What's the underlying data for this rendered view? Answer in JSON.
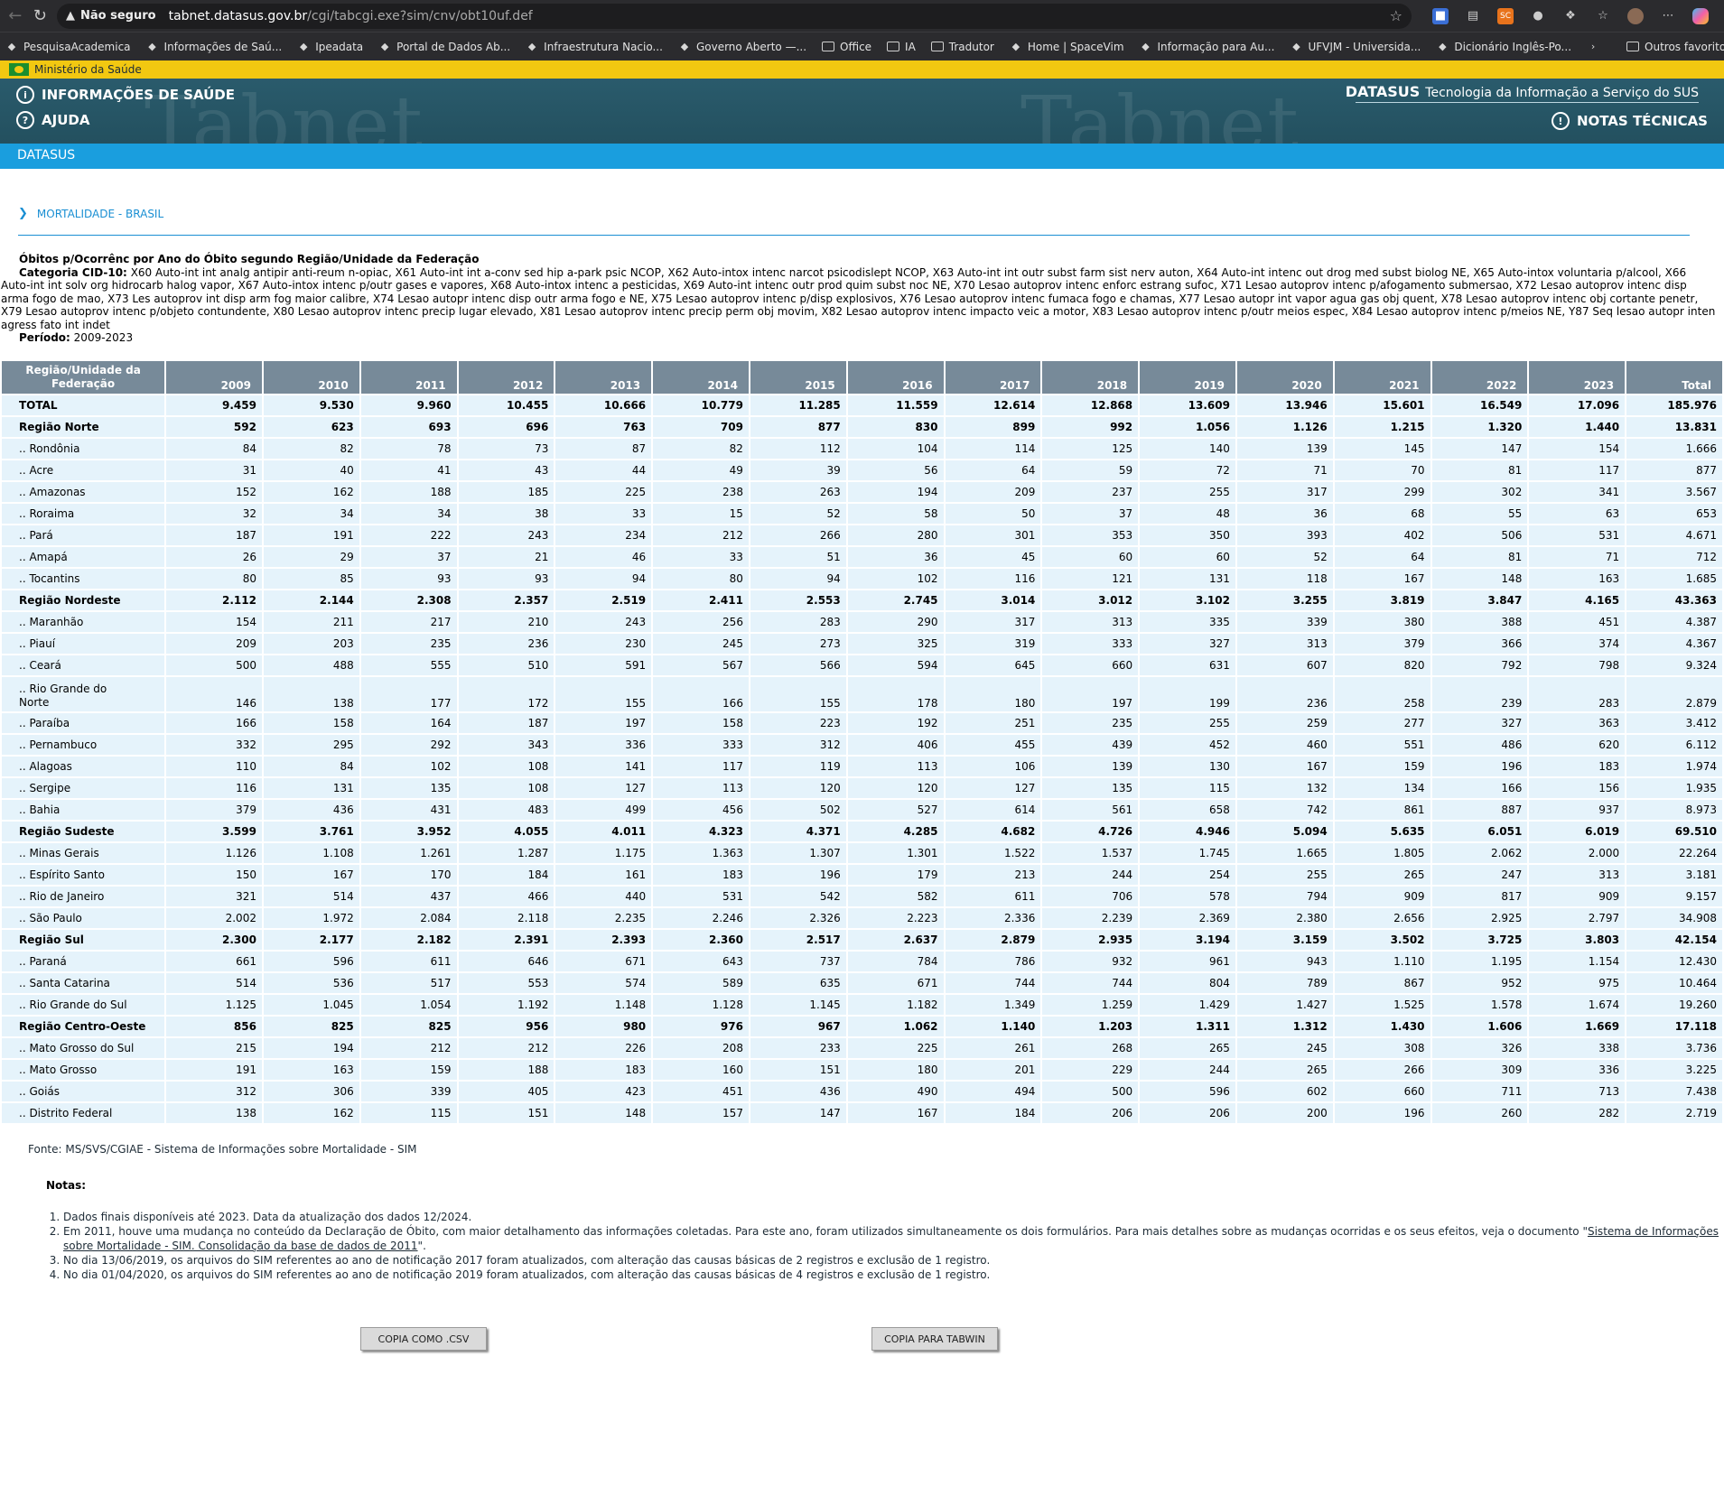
{
  "browser": {
    "security_label": "Não seguro",
    "url_host": "tabnet.datasus.gov.br",
    "url_path": "/cgi/tabcgi.exe?sim/cnv/obt10uf.def",
    "bookmarks": [
      "PesquisaAcademica",
      "Informações de Saú...",
      "Ipeadata",
      "Portal de Dados Ab...",
      "Infraestrutura Nacio...",
      "Governo Aberto —...",
      "Office",
      "IA",
      "Tradutor",
      "Home | SpaceVim",
      "Informação para Au...",
      "UFVJM - Universida...",
      "Dicionário Inglês-Po..."
    ],
    "other_bookmarks": "Outros favoritos"
  },
  "header": {
    "gov_label": "Ministério da Saúde",
    "watermark": "Tabnet",
    "info_link": "INFORMAÇÕES DE SAÚDE",
    "help_link": "AJUDA",
    "brand": "DATASUS",
    "tagline": "Tecnologia da Informação a Serviço do SUS",
    "notes_link": "NOTAS TÉCNICAS",
    "subbar": "DATASUS"
  },
  "page": {
    "section_title": "MORTALIDADE - BRASIL",
    "table_title": "Óbitos p/Ocorrênc por Ano do Óbito segundo Região/Unidade da Federação",
    "category_label": "Categoria CID-10:",
    "category_text": "X60 Auto-int int analg antipir anti-reum n-opiac, X61 Auto-int int a-conv sed hip a-park psic NCOP, X62 Auto-intox intenc narcot psicodislept NCOP, X63 Auto-int int outr subst farm sist nerv auton, X64 Auto-int intenc out drog med subst biolog NE, X65 Auto-intox voluntaria p/alcool, X66 Auto-int int solv org hidrocarb halog vapor, X67 Auto-intox intenc p/outr gases e vapores, X68 Auto-intox intenc a pesticidas, X69 Auto-int intenc outr prod quim subst noc NE, X70 Lesao autoprov intenc enforc estrang sufoc, X71 Lesao autoprov intenc p/afogamento submersao, X72 Lesao autoprov intenc disp arma fogo de mao, X73 Les autoprov int disp arm fog maior calibre, X74 Lesao autopr intenc disp outr arma fogo e NE, X75 Lesao autoprov intenc p/disp explosivos, X76 Lesao autoprov intenc fumaca fogo e chamas, X77 Lesao autopr int vapor agua gas obj quent, X78 Lesao autoprov intenc obj cortante penetr, X79 Lesao autoprov intenc p/objeto contundente, X80 Lesao autoprov intenc precip lugar elevado, X81 Lesao autoprov intenc precip perm obj movim, X82 Lesao autoprov intenc impacto veic a motor, X83 Lesao autoprov intenc p/outr meios espec, X84 Lesao autoprov intenc p/meios NE, Y87 Seq lesao autopr inten agress fato int indet",
    "period_label": "Período:",
    "period_value": "2009-2023"
  },
  "table": {
    "header_first": "Região/Unidade da Federação",
    "columns": [
      "2009",
      "2010",
      "2011",
      "2012",
      "2013",
      "2014",
      "2015",
      "2016",
      "2017",
      "2018",
      "2019",
      "2020",
      "2021",
      "2022",
      "2023",
      "Total"
    ],
    "rows": [
      {
        "label": "TOTAL",
        "type": "total",
        "values": [
          "9.459",
          "9.530",
          "9.960",
          "10.455",
          "10.666",
          "10.779",
          "11.285",
          "11.559",
          "12.614",
          "12.868",
          "13.609",
          "13.946",
          "15.601",
          "16.549",
          "17.096",
          "185.976"
        ]
      },
      {
        "label": "Região Norte",
        "type": "region",
        "values": [
          "592",
          "623",
          "693",
          "696",
          "763",
          "709",
          "877",
          "830",
          "899",
          "992",
          "1.056",
          "1.126",
          "1.215",
          "1.320",
          "1.440",
          "13.831"
        ]
      },
      {
        "label": ".. Rondônia",
        "type": "uf",
        "values": [
          "84",
          "82",
          "78",
          "73",
          "87",
          "82",
          "112",
          "104",
          "114",
          "125",
          "140",
          "139",
          "145",
          "147",
          "154",
          "1.666"
        ]
      },
      {
        "label": ".. Acre",
        "type": "uf",
        "values": [
          "31",
          "40",
          "41",
          "43",
          "44",
          "49",
          "39",
          "56",
          "64",
          "59",
          "72",
          "71",
          "70",
          "81",
          "117",
          "877"
        ]
      },
      {
        "label": ".. Amazonas",
        "type": "uf",
        "values": [
          "152",
          "162",
          "188",
          "185",
          "225",
          "238",
          "263",
          "194",
          "209",
          "237",
          "255",
          "317",
          "299",
          "302",
          "341",
          "3.567"
        ]
      },
      {
        "label": ".. Roraima",
        "type": "uf",
        "values": [
          "32",
          "34",
          "34",
          "38",
          "33",
          "15",
          "52",
          "58",
          "50",
          "37",
          "48",
          "36",
          "68",
          "55",
          "63",
          "653"
        ]
      },
      {
        "label": ".. Pará",
        "type": "uf",
        "values": [
          "187",
          "191",
          "222",
          "243",
          "234",
          "212",
          "266",
          "280",
          "301",
          "353",
          "350",
          "393",
          "402",
          "506",
          "531",
          "4.671"
        ]
      },
      {
        "label": ".. Amapá",
        "type": "uf",
        "values": [
          "26",
          "29",
          "37",
          "21",
          "46",
          "33",
          "51",
          "36",
          "45",
          "60",
          "60",
          "52",
          "64",
          "81",
          "71",
          "712"
        ]
      },
      {
        "label": ".. Tocantins",
        "type": "uf",
        "values": [
          "80",
          "85",
          "93",
          "93",
          "94",
          "80",
          "94",
          "102",
          "116",
          "121",
          "131",
          "118",
          "167",
          "148",
          "163",
          "1.685"
        ]
      },
      {
        "label": "Região Nordeste",
        "type": "region",
        "values": [
          "2.112",
          "2.144",
          "2.308",
          "2.357",
          "2.519",
          "2.411",
          "2.553",
          "2.745",
          "3.014",
          "3.012",
          "3.102",
          "3.255",
          "3.819",
          "3.847",
          "4.165",
          "43.363"
        ]
      },
      {
        "label": ".. Maranhão",
        "type": "uf",
        "values": [
          "154",
          "211",
          "217",
          "210",
          "243",
          "256",
          "283",
          "290",
          "317",
          "313",
          "335",
          "339",
          "380",
          "388",
          "451",
          "4.387"
        ]
      },
      {
        "label": ".. Piauí",
        "type": "uf",
        "values": [
          "209",
          "203",
          "235",
          "236",
          "230",
          "245",
          "273",
          "325",
          "319",
          "333",
          "327",
          "313",
          "379",
          "366",
          "374",
          "4.367"
        ]
      },
      {
        "label": ".. Ceará",
        "type": "uf",
        "values": [
          "500",
          "488",
          "555",
          "510",
          "591",
          "567",
          "566",
          "594",
          "645",
          "660",
          "631",
          "607",
          "820",
          "792",
          "798",
          "9.324"
        ]
      },
      {
        "label": ".. Rio Grande do Norte",
        "type": "uf",
        "tall": true,
        "values": [
          "146",
          "138",
          "177",
          "172",
          "155",
          "166",
          "155",
          "178",
          "180",
          "197",
          "199",
          "236",
          "258",
          "239",
          "283",
          "2.879"
        ]
      },
      {
        "label": ".. Paraíba",
        "type": "uf",
        "values": [
          "166",
          "158",
          "164",
          "187",
          "197",
          "158",
          "223",
          "192",
          "251",
          "235",
          "255",
          "259",
          "277",
          "327",
          "363",
          "3.412"
        ]
      },
      {
        "label": ".. Pernambuco",
        "type": "uf",
        "values": [
          "332",
          "295",
          "292",
          "343",
          "336",
          "333",
          "312",
          "406",
          "455",
          "439",
          "452",
          "460",
          "551",
          "486",
          "620",
          "6.112"
        ]
      },
      {
        "label": ".. Alagoas",
        "type": "uf",
        "values": [
          "110",
          "84",
          "102",
          "108",
          "141",
          "117",
          "119",
          "113",
          "106",
          "139",
          "130",
          "167",
          "159",
          "196",
          "183",
          "1.974"
        ]
      },
      {
        "label": ".. Sergipe",
        "type": "uf",
        "values": [
          "116",
          "131",
          "135",
          "108",
          "127",
          "113",
          "120",
          "120",
          "127",
          "135",
          "115",
          "132",
          "134",
          "166",
          "156",
          "1.935"
        ]
      },
      {
        "label": ".. Bahia",
        "type": "uf",
        "values": [
          "379",
          "436",
          "431",
          "483",
          "499",
          "456",
          "502",
          "527",
          "614",
          "561",
          "658",
          "742",
          "861",
          "887",
          "937",
          "8.973"
        ]
      },
      {
        "label": "Região Sudeste",
        "type": "region",
        "values": [
          "3.599",
          "3.761",
          "3.952",
          "4.055",
          "4.011",
          "4.323",
          "4.371",
          "4.285",
          "4.682",
          "4.726",
          "4.946",
          "5.094",
          "5.635",
          "6.051",
          "6.019",
          "69.510"
        ]
      },
      {
        "label": ".. Minas Gerais",
        "type": "uf",
        "values": [
          "1.126",
          "1.108",
          "1.261",
          "1.287",
          "1.175",
          "1.363",
          "1.307",
          "1.301",
          "1.522",
          "1.537",
          "1.745",
          "1.665",
          "1.805",
          "2.062",
          "2.000",
          "22.264"
        ]
      },
      {
        "label": ".. Espírito Santo",
        "type": "uf",
        "values": [
          "150",
          "167",
          "170",
          "184",
          "161",
          "183",
          "196",
          "179",
          "213",
          "244",
          "254",
          "255",
          "265",
          "247",
          "313",
          "3.181"
        ]
      },
      {
        "label": ".. Rio de Janeiro",
        "type": "uf",
        "values": [
          "321",
          "514",
          "437",
          "466",
          "440",
          "531",
          "542",
          "582",
          "611",
          "706",
          "578",
          "794",
          "909",
          "817",
          "909",
          "9.157"
        ]
      },
      {
        "label": ".. São Paulo",
        "type": "uf",
        "values": [
          "2.002",
          "1.972",
          "2.084",
          "2.118",
          "2.235",
          "2.246",
          "2.326",
          "2.223",
          "2.336",
          "2.239",
          "2.369",
          "2.380",
          "2.656",
          "2.925",
          "2.797",
          "34.908"
        ]
      },
      {
        "label": "Região Sul",
        "type": "region",
        "values": [
          "2.300",
          "2.177",
          "2.182",
          "2.391",
          "2.393",
          "2.360",
          "2.517",
          "2.637",
          "2.879",
          "2.935",
          "3.194",
          "3.159",
          "3.502",
          "3.725",
          "3.803",
          "42.154"
        ]
      },
      {
        "label": ".. Paraná",
        "type": "uf",
        "values": [
          "661",
          "596",
          "611",
          "646",
          "671",
          "643",
          "737",
          "784",
          "786",
          "932",
          "961",
          "943",
          "1.110",
          "1.195",
          "1.154",
          "12.430"
        ]
      },
      {
        "label": ".. Santa Catarina",
        "type": "uf",
        "values": [
          "514",
          "536",
          "517",
          "553",
          "574",
          "589",
          "635",
          "671",
          "744",
          "744",
          "804",
          "789",
          "867",
          "952",
          "975",
          "10.464"
        ]
      },
      {
        "label": ".. Rio Grande do Sul",
        "type": "uf",
        "values": [
          "1.125",
          "1.045",
          "1.054",
          "1.192",
          "1.148",
          "1.128",
          "1.145",
          "1.182",
          "1.349",
          "1.259",
          "1.429",
          "1.427",
          "1.525",
          "1.578",
          "1.674",
          "19.260"
        ]
      },
      {
        "label": "Região Centro-Oeste",
        "type": "region",
        "values": [
          "856",
          "825",
          "825",
          "956",
          "980",
          "976",
          "967",
          "1.062",
          "1.140",
          "1.203",
          "1.311",
          "1.312",
          "1.430",
          "1.606",
          "1.669",
          "17.118"
        ]
      },
      {
        "label": ".. Mato Grosso do Sul",
        "type": "uf",
        "values": [
          "215",
          "194",
          "212",
          "212",
          "226",
          "208",
          "233",
          "225",
          "261",
          "268",
          "265",
          "245",
          "308",
          "326",
          "338",
          "3.736"
        ]
      },
      {
        "label": ".. Mato Grosso",
        "type": "uf",
        "values": [
          "191",
          "163",
          "159",
          "188",
          "183",
          "160",
          "151",
          "180",
          "201",
          "229",
          "244",
          "265",
          "266",
          "309",
          "336",
          "3.225"
        ]
      },
      {
        "label": ".. Goiás",
        "type": "uf",
        "values": [
          "312",
          "306",
          "339",
          "405",
          "423",
          "451",
          "436",
          "490",
          "494",
          "500",
          "596",
          "602",
          "660",
          "711",
          "713",
          "7.438"
        ]
      },
      {
        "label": ".. Distrito Federal",
        "type": "uf",
        "values": [
          "138",
          "162",
          "115",
          "151",
          "148",
          "157",
          "147",
          "167",
          "184",
          "206",
          "206",
          "200",
          "196",
          "260",
          "282",
          "2.719"
        ]
      }
    ]
  },
  "footer": {
    "source": "Fonte: MS/SVS/CGIAE - Sistema de Informações sobre Mortalidade - SIM",
    "notes_title": "Notas:",
    "note1": "Dados finais disponíveis até 2023. Data da atualização dos dados 12/2024.",
    "note2_text": "Em 2011, houve uma mudança no conteúdo da Declaração de Óbito, com maior detalhamento das informações coletadas. Para este ano, foram utilizados simultaneamente os dois formulários. Para mais detalhes sobre as mudanças ocorridas e os seus efeitos, veja o documento \"",
    "note2_link": "Sistema de Informações sobre Mortalidade - SIM. Consolidação da base de dados de 2011",
    "note2_end": "\".",
    "note3": "No dia 13/06/2019, os arquivos do SIM referentes ao ano de notificação 2017 foram atualizados, com alteração das causas básicas de 2 registros e exclusão de 1 registro.",
    "note4": "No dia 01/04/2020, os arquivos do SIM referentes ao ano de notificação 2019 foram atualizados, com alteração das causas básicas de 4 registros e exclusão de 1 registro.",
    "csv_button": "COPIA COMO .CSV",
    "tabwin_button": "COPIA PARA TABWIN"
  }
}
